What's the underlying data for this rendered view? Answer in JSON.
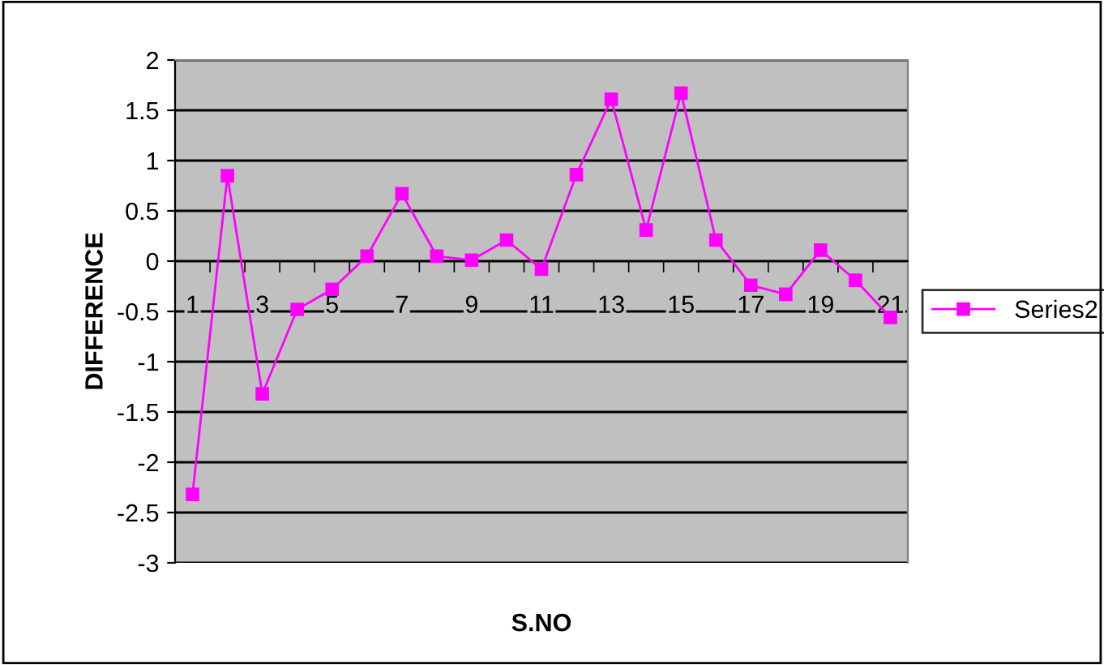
{
  "chart_data": {
    "type": "line",
    "xlabel": "S.NO",
    "ylabel": "DIFFERENCE",
    "categories": [
      "1",
      null,
      "3",
      null,
      "5",
      null,
      "7",
      null,
      "9",
      null,
      "11",
      null,
      "13",
      null,
      "15",
      null,
      "17",
      null,
      "19",
      null,
      "21"
    ],
    "series": [
      {
        "name": "Series2",
        "color": "#ff00ff",
        "values": [
          -2.32,
          0.85,
          -1.32,
          -0.48,
          -0.28,
          0.05,
          0.67,
          0.05,
          0.01,
          0.21,
          -0.08,
          0.86,
          1.61,
          0.31,
          1.67,
          0.21,
          -0.24,
          -0.33,
          0.11,
          -0.19,
          -0.56
        ]
      }
    ],
    "ylim": [
      -3,
      2
    ],
    "yticks": [
      -3,
      -2.5,
      -2,
      -1.5,
      -1,
      -0.5,
      0,
      0.5,
      1,
      1.5,
      2
    ],
    "grid": "y",
    "legend": "right",
    "marker": "square",
    "line_style": "solid"
  }
}
